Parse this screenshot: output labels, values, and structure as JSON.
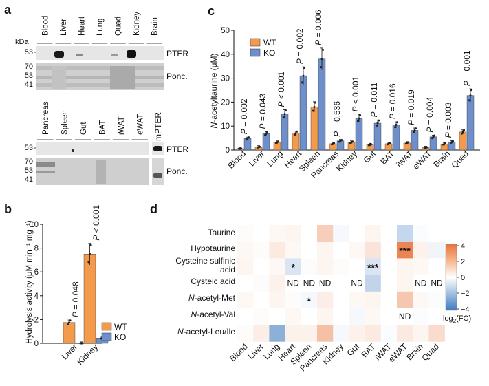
{
  "panel_labels": [
    "a",
    "b",
    "c",
    "d"
  ],
  "blot": {
    "kda_label": "kDa",
    "top_tissues": [
      "Blood",
      "Liver",
      "Heart",
      "Lung",
      "Quad",
      "Kidney",
      "Brain"
    ],
    "bottom_tissues": [
      "Pancreas",
      "Spleen",
      "Gut",
      "BAT",
      "iWAT",
      "eWAT"
    ],
    "mpter_label": "mPTER",
    "plus": "+",
    "minus": "–",
    "top_markers": [
      "53"
    ],
    "ponc_markers": [
      "70",
      "53",
      "41"
    ],
    "pter_label": "PTER",
    "ponc_label": "Ponc."
  },
  "chart_data": [
    {
      "type": "bar",
      "panel": "b",
      "ylabel": "Hydrolysis activity (μM min⁻¹ mg⁻¹)",
      "ylim": [
        0,
        10
      ],
      "yticks": [
        "0",
        "2",
        "4",
        "6",
        "8",
        "10"
      ],
      "categories": [
        "Liver",
        "Kidney"
      ],
      "series": [
        {
          "name": "WT",
          "color": "#F39A4C",
          "values": [
            1.75,
            7.5
          ]
        },
        {
          "name": "KO",
          "color": "#6E8FC9",
          "values": [
            0.0,
            0.45
          ]
        }
      ],
      "pvalues": [
        "P = 0.048",
        "P < 0.001"
      ],
      "legend": [
        "WT",
        "KO"
      ]
    },
    {
      "type": "bar",
      "panel": "c",
      "ylabel": "N-acetyltaurine (μM)",
      "ylim": [
        0,
        50
      ],
      "yticks": [
        "0",
        "10",
        "20",
        "30",
        "40",
        "50"
      ],
      "categories": [
        "Blood",
        "Liver",
        "Lung",
        "Heart",
        "Spleen",
        "Pancreas",
        "Kidney",
        "Gut",
        "BAT",
        "iWAT",
        "eWAT",
        "Brain",
        "Quad"
      ],
      "series": [
        {
          "name": "WT",
          "color": "#F39A4C",
          "values": [
            0.6,
            1.2,
            3.2,
            7.0,
            18.0,
            2.6,
            3.2,
            2.2,
            2.6,
            2.9,
            1.0,
            2.5,
            7.5
          ]
        },
        {
          "name": "KO",
          "color": "#6E8FC9",
          "values": [
            4.8,
            6.8,
            15.0,
            31.0,
            38.0,
            3.8,
            13.2,
            11.2,
            10.5,
            8.2,
            5.5,
            3.3,
            22.8
          ]
        }
      ],
      "pvalues": [
        "P = 0.002",
        "P = 0.043",
        "P < 0.001",
        "P = 0.002",
        "P = 0.006",
        "P = 0.536",
        "P < 0.001",
        "P = 0.011",
        "P = 0.016",
        "P = 0.019",
        "P = 0.004",
        "P = 0.003",
        "P = 0.001"
      ],
      "legend": [
        "WT",
        "KO"
      ]
    },
    {
      "type": "heatmap",
      "panel": "d",
      "rows": [
        "Taurine",
        "Hypotaurine",
        "Cysteine sulfinic acid",
        "Cysteic acid",
        "N-acetyl-Met",
        "N-acetyl-Val",
        "N-acetyl-Leu/Ile"
      ],
      "row_labels_display": {
        "taurine": "Taurine",
        "hypotaurine": "Hypotaurine",
        "csa_line1": "Cysteine sulfinic",
        "csa_line2": "acid",
        "cysteic": "Cysteic acid",
        "met_prefix": "N",
        "met_rest": "-acetyl-Met",
        "val_prefix": "N",
        "val_rest": "-acetyl-Val",
        "leu_prefix": "N",
        "leu_rest": "-acetyl-Leu/Ile"
      },
      "columns": [
        "Blood",
        "Liver",
        "Lung",
        "Heart",
        "Spleen",
        "Pancreas",
        "Kidney",
        "Gut",
        "BAT",
        "iWAT",
        "eWAT",
        "Brain",
        "Quad"
      ],
      "values": [
        [
          0.1,
          0.0,
          0.2,
          0.3,
          0.0,
          1.4,
          -0.2,
          0.0,
          0.3,
          0.0,
          -1.2,
          -0.1,
          0.0
        ],
        [
          0.2,
          0.1,
          0.6,
          0.2,
          0.0,
          0.3,
          0.0,
          0.2,
          0.8,
          0.0,
          3.5,
          0.4,
          -0.3
        ],
        [
          0.3,
          0.0,
          0.2,
          -0.8,
          0.1,
          0.3,
          0.1,
          0.0,
          -0.8,
          0.0,
          0.3,
          0.2,
          0.0
        ],
        [
          0.0,
          0.1,
          0.4,
          null,
          null,
          null,
          0.0,
          null,
          -1.3,
          0.0,
          0.3,
          null,
          null
        ],
        [
          0.2,
          0.0,
          0.3,
          0.1,
          -0.2,
          0.5,
          0.0,
          0.2,
          0.3,
          0.0,
          1.6,
          0.2,
          -0.1
        ],
        [
          0.0,
          0.1,
          0.0,
          0.2,
          0.0,
          0.3,
          0.0,
          -0.2,
          0.2,
          0.0,
          null,
          -0.1,
          0.0
        ],
        [
          0.1,
          0.5,
          -2.4,
          0.4,
          0.4,
          1.8,
          -0.2,
          0.4,
          0.6,
          -0.1,
          0.6,
          0.3,
          1.0
        ]
      ],
      "annotations": [
        {
          "row": 1,
          "col": 10,
          "text": "***"
        },
        {
          "row": 2,
          "col": 3,
          "text": "*"
        },
        {
          "row": 2,
          "col": 8,
          "text": "***"
        },
        {
          "row": 4,
          "col": 4,
          "text": "*"
        }
      ],
      "missing_label": "ND",
      "colorbar": {
        "range": [
          -4,
          4
        ],
        "ticks": [
          "4",
          "2",
          "0",
          "−2",
          "−4"
        ],
        "label_prefix": "log",
        "label_sub": "2",
        "label_suffix": "(FC)"
      }
    }
  ]
}
